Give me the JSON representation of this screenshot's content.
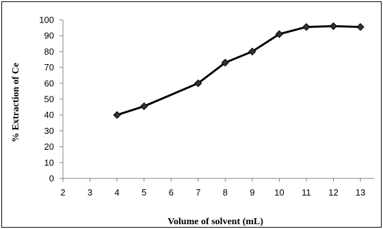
{
  "chart_data": {
    "type": "line",
    "title": "",
    "xlabel": "Volume of solvent (mL)",
    "ylabel": "% Extraction of Ce",
    "x_ticks": [
      2,
      3,
      4,
      5,
      6,
      7,
      8,
      9,
      10,
      11,
      12,
      13
    ],
    "y_ticks": [
      0,
      10,
      20,
      30,
      40,
      50,
      60,
      70,
      80,
      90,
      100
    ],
    "xlim": [
      2,
      13
    ],
    "ylim": [
      0,
      100
    ],
    "grid": false,
    "legend": "none",
    "series": [
      {
        "color": "#000000",
        "marker": "diamond",
        "points": [
          {
            "x": 4,
            "y": 40
          },
          {
            "x": 5,
            "y": 45.5
          },
          {
            "x": 7,
            "y": 60
          },
          {
            "x": 8,
            "y": 73
          },
          {
            "x": 9,
            "y": 80
          },
          {
            "x": 10,
            "y": 91
          },
          {
            "x": 11,
            "y": 95.5
          },
          {
            "x": 12,
            "y": 96
          },
          {
            "x": 13,
            "y": 95.5
          }
        ]
      }
    ]
  }
}
